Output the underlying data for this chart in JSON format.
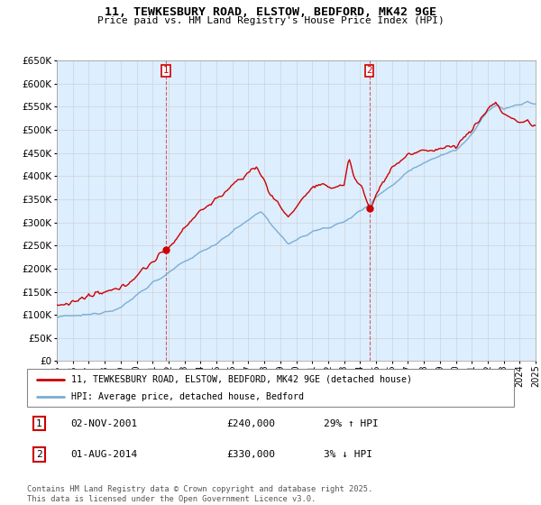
{
  "title": "11, TEWKESBURY ROAD, ELSTOW, BEDFORD, MK42 9GE",
  "subtitle": "Price paid vs. HM Land Registry's House Price Index (HPI)",
  "ytick_values": [
    0,
    50000,
    100000,
    150000,
    200000,
    250000,
    300000,
    350000,
    400000,
    450000,
    500000,
    550000,
    600000,
    650000
  ],
  "xmin": 1995,
  "xmax": 2025,
  "ymin": 0,
  "ymax": 650000,
  "vline1_x": 2001.84,
  "vline2_x": 2014.58,
  "legend_label_red": "11, TEWKESBURY ROAD, ELSTOW, BEDFORD, MK42 9GE (detached house)",
  "legend_label_blue": "HPI: Average price, detached house, Bedford",
  "table_row1": [
    "1",
    "02-NOV-2001",
    "£240,000",
    "29% ↑ HPI"
  ],
  "table_row2": [
    "2",
    "01-AUG-2014",
    "£330,000",
    "3% ↓ HPI"
  ],
  "footer": "Contains HM Land Registry data © Crown copyright and database right 2025.\nThis data is licensed under the Open Government Licence v3.0.",
  "red_color": "#cc0000",
  "blue_color": "#7aadd4",
  "shade_color": "#ddeeff",
  "grid_color": "#cccccc",
  "bg_color": "#ddeeff",
  "vline_color": "#cc0000"
}
